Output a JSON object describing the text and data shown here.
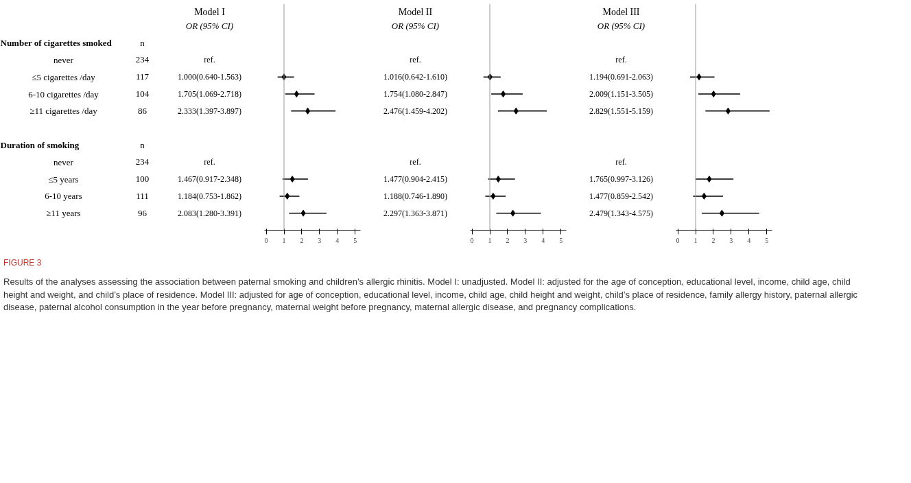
{
  "chart_data": [
    {
      "type": "scatter",
      "orientation": "horizontal",
      "title": "Model I",
      "subtitle": "OR (95% CI)",
      "categories": [
        "Number of cigarettes smoked",
        "never",
        "≤5 cigarettes /day",
        "6-10 cigarettes /day",
        "≥11 cigarettes /day",
        null,
        "Duration of smoking",
        "never",
        "≤5 years",
        "6-10 years",
        "≥11 years"
      ],
      "y2_categories": [
        "n",
        "234",
        "117",
        "104",
        "86",
        null,
        "n",
        "234",
        "100",
        "111",
        "96"
      ],
      "values": [
        null,
        null,
        1.0,
        1.705,
        2.333,
        null,
        null,
        null,
        1.467,
        1.184,
        2.083
      ],
      "errors": [
        null,
        null,
        [
          0.64,
          1.563
        ],
        [
          1.069,
          2.718
        ],
        [
          1.397,
          3.897
        ],
        null,
        null,
        null,
        [
          0.917,
          2.348
        ],
        [
          0.753,
          1.862
        ],
        [
          1.28,
          3.391
        ]
      ],
      "value_labels": [
        null,
        "ref.",
        "1.000(0.640-1.563)",
        "1.705(1.069-2.718)",
        "2.333(1.397-3.897)",
        null,
        null,
        "ref.",
        "1.467(0.917-2.348)",
        "1.184(0.753-1.862)",
        "2.083(1.280-3.391)"
      ],
      "color": "#000000",
      "marker": "diamond",
      "grid": false,
      "tick_labels": "x",
      "xlim": [
        -0.1,
        5.3
      ],
      "xticks": [
        0,
        1,
        2,
        3,
        4,
        5
      ],
      "ref_lines": [
        {
          "axis": "x",
          "value": 1,
          "color": "#999999"
        }
      ],
      "annotations": [
        "FIGURE 3",
        "Results of the analyses assessing the association between paternal smoking and children’s allergic rhinitis. Model I: unadjusted. Model II: adjusted for the age of conception, educational level, income, child age, child height and weight, and child’s place of residence. Model III: adjusted for age of conception, educational level, income, child age, child height and weight, child’s place of residence, family allergy history, paternal allergic disease, paternal alcohol consumption in the year before pregnancy, maternal weight before pregnancy, maternal allergic disease, and pregnancy complications."
      ]
    },
    {
      "type": "scatter",
      "orientation": "horizontal",
      "title": "Model II",
      "subtitle": "OR (95% CI)",
      "values": [
        null,
        null,
        1.016,
        1.754,
        2.476,
        null,
        null,
        null,
        1.477,
        1.188,
        2.297
      ],
      "errors": [
        null,
        null,
        [
          0.642,
          1.61
        ],
        [
          1.08,
          2.847
        ],
        [
          1.459,
          4.202
        ],
        null,
        null,
        null,
        [
          0.904,
          2.415
        ],
        [
          0.746,
          1.89
        ],
        [
          1.363,
          3.871
        ]
      ],
      "value_labels": [
        null,
        "ref.",
        "1.016(0.642-1.610)",
        "1.754(1.080-2.847)",
        "2.476(1.459-4.202)",
        null,
        null,
        "ref.",
        "1.477(0.904-2.415)",
        "1.188(0.746-1.890)",
        "2.297(1.363-3.871)"
      ],
      "color": "#000000",
      "marker": "diamond",
      "grid": false,
      "tick_labels": "x",
      "xlim": [
        -0.1,
        5.3
      ],
      "xticks": [
        0,
        1,
        2,
        3,
        4,
        5
      ],
      "ref_lines": [
        {
          "axis": "x",
          "value": 1,
          "color": "#999999"
        }
      ]
    },
    {
      "type": "scatter",
      "orientation": "horizontal",
      "title": "Model III",
      "subtitle": "OR (95% CI)",
      "values": [
        null,
        null,
        1.194,
        2.009,
        2.829,
        null,
        null,
        null,
        1.765,
        1.477,
        2.479
      ],
      "errors": [
        null,
        null,
        [
          0.691,
          2.063
        ],
        [
          1.151,
          3.505
        ],
        [
          1.551,
          5.159
        ],
        null,
        null,
        null,
        [
          0.997,
          3.126
        ],
        [
          0.859,
          2.542
        ],
        [
          1.343,
          4.575
        ]
      ],
      "value_labels": [
        null,
        "ref.",
        "1.194(0.691-2.063)",
        "2.009(1.151-3.505)",
        "2.829(1.551-5.159)",
        null,
        null,
        "ref.",
        "1.765(0.997-3.126)",
        "1.477(0.859-2.542)",
        "2.479(1.343-4.575)"
      ],
      "color": "#000000",
      "marker": "diamond",
      "grid": false,
      "tick_labels": "x",
      "xlim": [
        -0.1,
        5.3
      ],
      "xticks": [
        0,
        1,
        2,
        3,
        4,
        5
      ],
      "ref_lines": [
        {
          "axis": "x",
          "value": 1,
          "color": "#999999"
        }
      ]
    }
  ]
}
